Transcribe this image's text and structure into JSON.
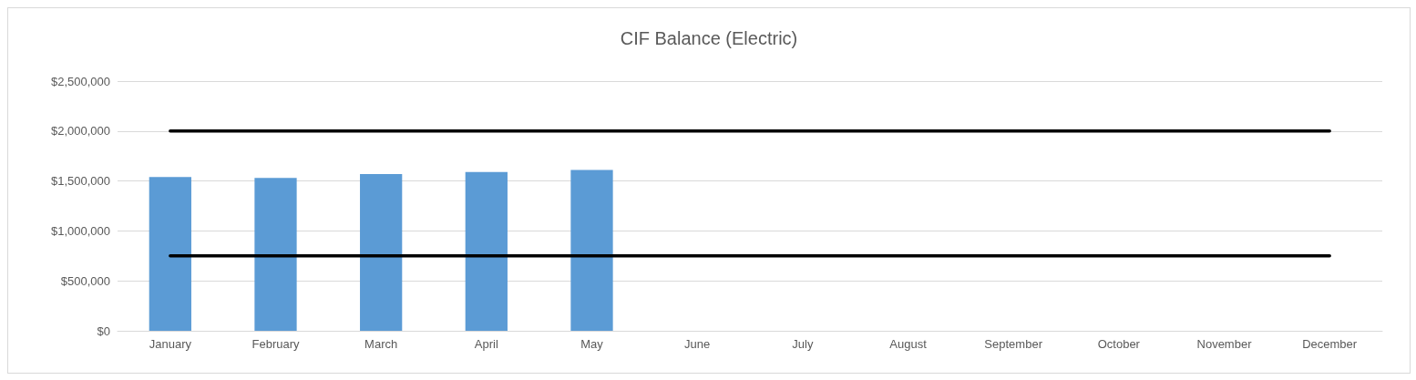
{
  "chart_data": {
    "type": "bar",
    "title": "CIF Balance (Electric)",
    "categories": [
      "January",
      "February",
      "March",
      "April",
      "May",
      "June",
      "July",
      "August",
      "September",
      "October",
      "November",
      "December"
    ],
    "series": [
      {
        "color": "#5b9bd5",
        "values": [
          1540000,
          1530000,
          1570000,
          1590000,
          1610000,
          null,
          null,
          null,
          null,
          null,
          null,
          null
        ]
      },
      {
        "type": "line",
        "color": "#000000",
        "marker": "none",
        "values": [
          2000000,
          2000000,
          2000000,
          2000000,
          2000000,
          2000000,
          2000000,
          2000000,
          2000000,
          2000000,
          2000000,
          2000000
        ]
      },
      {
        "type": "line",
        "color": "#000000",
        "marker": "none",
        "values": [
          750000,
          750000,
          750000,
          750000,
          750000,
          750000,
          750000,
          750000,
          750000,
          750000,
          750000,
          750000
        ]
      }
    ],
    "ylim": [
      0,
      2500000
    ],
    "yticks": [
      {
        "value": 0,
        "label": "$0"
      },
      {
        "value": 500000,
        "label": "$500,000"
      },
      {
        "value": 1000000,
        "label": "$1,000,000"
      },
      {
        "value": 1500000,
        "label": "$1,500,000"
      },
      {
        "value": 2000000,
        "label": "$2,000,000"
      },
      {
        "value": 2500000,
        "label": "$2,500,000"
      }
    ],
    "grid": "y"
  }
}
